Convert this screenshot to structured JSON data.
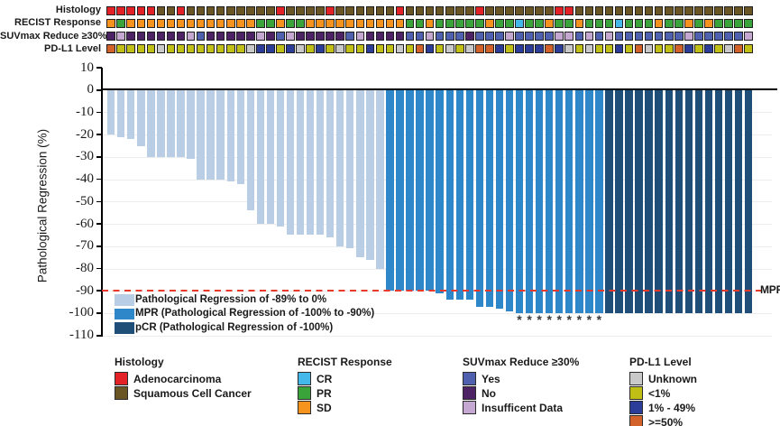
{
  "figure": {
    "tracks": [
      {
        "key": "histology",
        "label": "Histology"
      },
      {
        "key": "recist",
        "label": "RECIST Response"
      },
      {
        "key": "suvmax",
        "label": "SUVmax Reduce ≥30%"
      },
      {
        "key": "pdl1",
        "label": "PD-L1 Level"
      }
    ]
  },
  "chart_data": {
    "type": "bar",
    "subtype": "waterfall",
    "title": "",
    "xlabel": "",
    "ylabel": "Pathological Regression (%)",
    "ylim": [
      -110,
      10
    ],
    "yticks": [
      10,
      0,
      -10,
      -20,
      -30,
      -40,
      -50,
      -60,
      -70,
      -80,
      -90,
      -100,
      -110
    ],
    "grid": true,
    "n_patients": 65,
    "mpr_line": {
      "y": -90,
      "label": "MPR",
      "color": "#E8392B",
      "style": "dashed"
    },
    "bar_groups": [
      {
        "key": "reg",
        "label": "Pathological Regression of -89% to 0%",
        "color": "#B9CDE5"
      },
      {
        "key": "mpr",
        "label": "MPR (Pathological Regression of -100% to -90%)",
        "color": "#2E87C8"
      },
      {
        "key": "pcr",
        "label": "pCR (Pathological Regression of -100%)",
        "color": "#1F4E79"
      }
    ],
    "group_spans": [
      {
        "group": "reg",
        "count": 28
      },
      {
        "group": "mpr",
        "count": 22
      },
      {
        "group": "pcr",
        "count": 15
      }
    ],
    "values": [
      -20,
      -21,
      -22,
      -25,
      -30,
      -30,
      -30,
      -30,
      -31,
      -40,
      -40,
      -40,
      -41,
      -42,
      -54,
      -60,
      -60,
      -61,
      -65,
      -65,
      -65,
      -65,
      -66,
      -70,
      -71,
      -75,
      -76,
      -80,
      -90,
      -90,
      -90,
      -90,
      -90,
      -91,
      -94,
      -94,
      -94,
      -97,
      -97,
      -98,
      -99,
      -100,
      -100,
      -100,
      -100,
      -100,
      -100,
      -100,
      -100,
      -100,
      -100,
      -100,
      -100,
      -100,
      -100,
      -100,
      -100,
      -100,
      -100,
      -100,
      -100,
      -100,
      -100,
      -100,
      -100
    ],
    "asterisk_columns": [
      42,
      43,
      44,
      45,
      46,
      47,
      48,
      49,
      50
    ],
    "asterisk_symbol": "*",
    "annotations": {
      "histology": [
        "A",
        "A",
        "A",
        "A",
        "A",
        "S",
        "S",
        "A",
        "S",
        "S",
        "S",
        "S",
        "S",
        "S",
        "S",
        "S",
        "S",
        "A",
        "S",
        "S",
        "S",
        "S",
        "A",
        "S",
        "S",
        "S",
        "S",
        "S",
        "S",
        "A",
        "S",
        "S",
        "S",
        "S",
        "S",
        "S",
        "S",
        "A",
        "S",
        "S",
        "S",
        "S",
        "S",
        "S",
        "S",
        "A",
        "A",
        "S",
        "S",
        "S",
        "S",
        "S",
        "S",
        "S",
        "S",
        "S",
        "S",
        "S",
        "S",
        "S",
        "S",
        "S",
        "S",
        "S",
        "S"
      ],
      "recist": [
        "SD",
        "PR",
        "SD",
        "SD",
        "SD",
        "SD",
        "SD",
        "SD",
        "SD",
        "SD",
        "SD",
        "SD",
        "SD",
        "SD",
        "SD",
        "PR",
        "PR",
        "SD",
        "PR",
        "PR",
        "SD",
        "SD",
        "SD",
        "SD",
        "SD",
        "SD",
        "SD",
        "SD",
        "SD",
        "SD",
        "PR",
        "PR",
        "SD",
        "PR",
        "PR",
        "PR",
        "PR",
        "PR",
        "SD",
        "PR",
        "PR",
        "CR",
        "PR",
        "PR",
        "SD",
        "PR",
        "PR",
        "SD",
        "PR",
        "PR",
        "PR",
        "CR",
        "PR",
        "PR",
        "PR",
        "SD",
        "PR",
        "PR",
        "SD",
        "PR",
        "SD",
        "PR",
        "PR",
        "PR",
        "PR"
      ],
      "suvmax": [
        "N",
        "I",
        "N",
        "N",
        "N",
        "N",
        "N",
        "N",
        "I",
        "Y",
        "N",
        "N",
        "N",
        "N",
        "N",
        "I",
        "N",
        "Y",
        "I",
        "N",
        "N",
        "N",
        "N",
        "N",
        "Y",
        "I",
        "N",
        "N",
        "N",
        "N",
        "Y",
        "Y",
        "I",
        "Y",
        "Y",
        "Y",
        "N",
        "Y",
        "Y",
        "Y",
        "I",
        "Y",
        "Y",
        "Y",
        "Y",
        "I",
        "I",
        "Y",
        "I",
        "Y",
        "I",
        "Y",
        "Y",
        "Y",
        "Y",
        "Y",
        "Y",
        "Y",
        "I",
        "Y",
        "Y",
        "Y",
        "Y",
        "Y",
        "I"
      ],
      "pdl1": [
        "H",
        "L",
        "L",
        "L",
        "L",
        "U",
        "L",
        "L",
        "L",
        "L",
        "L",
        "L",
        "L",
        "L",
        "U",
        "M",
        "M",
        "L",
        "M",
        "U",
        "L",
        "M",
        "L",
        "U",
        "L",
        "L",
        "M",
        "L",
        "L",
        "U",
        "L",
        "H",
        "M",
        "L",
        "U",
        "L",
        "U",
        "H",
        "H",
        "M",
        "L",
        "M",
        "M",
        "M",
        "H",
        "M",
        "U",
        "L",
        "U",
        "L",
        "L",
        "M",
        "L",
        "H",
        "U",
        "L",
        "L",
        "H",
        "M",
        "L",
        "M",
        "L",
        "U",
        "H",
        "L"
      ]
    },
    "code_maps": {
      "histology": {
        "A": "Adenocarcinoma",
        "S": "Squamous Cell Cancer"
      },
      "recist": {
        "CR": "CR",
        "PR": "PR",
        "SD": "SD"
      },
      "suvmax": {
        "Y": "Yes",
        "N": "No",
        "I": "Insufficent Data"
      },
      "pdl1": {
        "U": "Unknown",
        "L": "<1%",
        "M": "1% - 49%",
        "H": ">=50%"
      }
    },
    "track_colors": {
      "histology": {
        "A": "#E32227",
        "S": "#6A5524"
      },
      "recist": {
        "SD": "#F6921E",
        "PR": "#3AA43A",
        "CR": "#44B8EA"
      },
      "suvmax": {
        "Y": "#4F61AE",
        "N": "#4E2365",
        "I": "#C4A8D2"
      },
      "pdl1": {
        "U": "#C9C9C9",
        "L": "#C0BF16",
        "M": "#2C3D99",
        "H": "#D2622A"
      }
    }
  },
  "legends": [
    {
      "title": "Histology",
      "items": [
        {
          "label": "Adenocarcinoma",
          "color": "#E32227"
        },
        {
          "label": "Squamous Cell Cancer",
          "color": "#6A5524"
        }
      ]
    },
    {
      "title": "RECIST Response",
      "items": [
        {
          "label": "CR",
          "color": "#44B8EA"
        },
        {
          "label": "PR",
          "color": "#3AA43A"
        },
        {
          "label": "SD",
          "color": "#F6921E"
        }
      ]
    },
    {
      "title": "SUVmax Reduce ≥30%",
      "items": [
        {
          "label": "Yes",
          "color": "#4F61AE"
        },
        {
          "label": "No",
          "color": "#4E2365"
        },
        {
          "label": "Insufficent Data",
          "color": "#C4A8D2"
        }
      ]
    },
    {
      "title": "PD-L1 Level",
      "items": [
        {
          "label": "Unknown",
          "color": "#C9C9C9"
        },
        {
          "label": "<1%",
          "color": "#C0BF16"
        },
        {
          "label": "1% - 49%",
          "color": "#2C3D99"
        },
        {
          "label": ">=50%",
          "color": "#D2622A"
        }
      ]
    }
  ],
  "colors": {
    "zero_line": "#000000",
    "grid": "#ececec",
    "mpr_dash": "#E8392B",
    "asterisk": "#3a3a3a"
  }
}
